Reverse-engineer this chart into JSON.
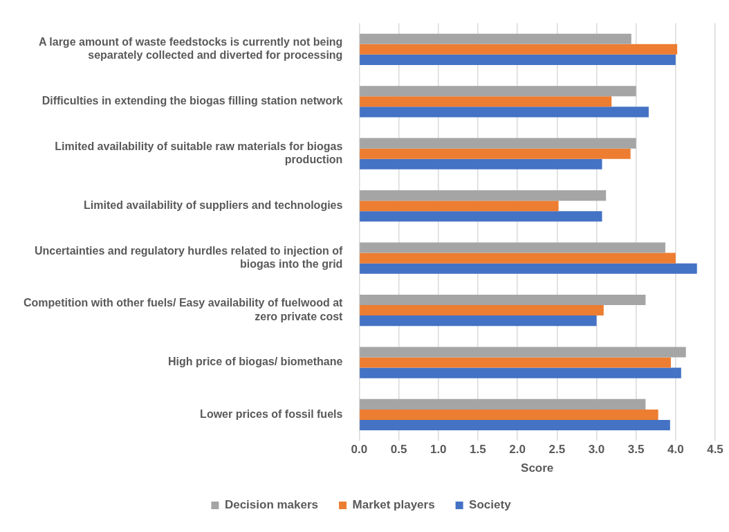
{
  "chart_data": {
    "type": "bar",
    "orientation": "horizontal",
    "categories": [
      "A large amount of waste feedstocks is currently not being separately collected and diverted for processing",
      "Difficulties in extending the biogas filling station network",
      "Limited availability of suitable raw materials for biogas production",
      "Limited availability of suppliers and technologies",
      "Uncertainties and regulatory hurdles related to injection of biogas into the grid",
      "Competition with other fuels/ Easy availability of fuelwood at zero private cost",
      "High price of biogas/ biomethane",
      "Lower prices of fossil fuels"
    ],
    "series": [
      {
        "name": "Decision makers",
        "color": "#a5a5a5",
        "values": [
          3.44,
          3.5,
          3.5,
          3.12,
          3.87,
          3.62,
          4.13,
          3.62
        ]
      },
      {
        "name": "Market players",
        "color": "#ed7d31",
        "values": [
          4.02,
          3.19,
          3.43,
          2.52,
          4.0,
          3.09,
          3.94,
          3.78
        ]
      },
      {
        "name": "Society",
        "color": "#4472c4",
        "values": [
          4.0,
          3.66,
          3.07,
          3.07,
          4.27,
          3.0,
          4.07,
          3.93
        ]
      }
    ],
    "xlabel": "Score",
    "xlim": [
      0,
      4.5
    ],
    "xticks": [
      {
        "value": 0,
        "label": "0.0"
      },
      {
        "value": 0.5,
        "label": "0.5"
      },
      {
        "value": 1,
        "label": "1.0"
      },
      {
        "value": 1.5,
        "label": "1.5"
      },
      {
        "value": 2,
        "label": "2.0"
      },
      {
        "value": 2.5,
        "label": "2.5"
      },
      {
        "value": 3,
        "label": "3.0"
      },
      {
        "value": 3.5,
        "label": "3.5"
      },
      {
        "value": 4,
        "label": "4.0"
      },
      {
        "value": 4.5,
        "label": "4.5"
      }
    ],
    "grid": "x",
    "legend": "bottom"
  }
}
